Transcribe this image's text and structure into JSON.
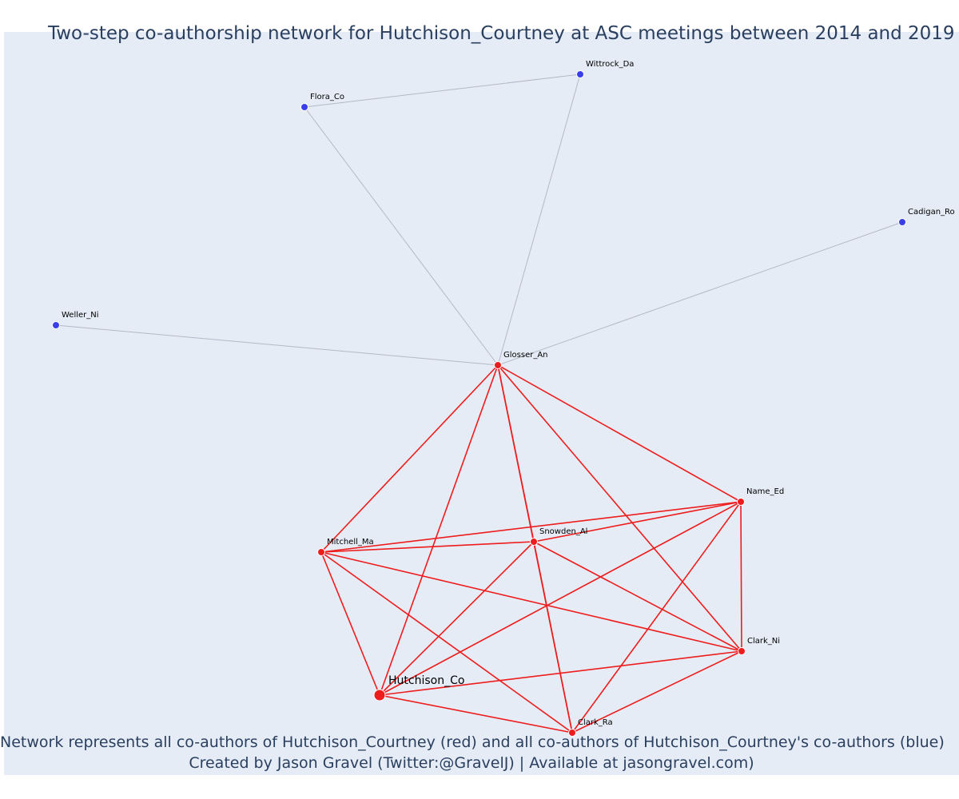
{
  "title": "Two-step co-authorship network for Hutchison_Courtney at ASC meetings between 2014 and 2019",
  "caption_line1": "Network represents all co-authors of Hutchison_Courtney (red) and all co-authors of Hutchison_Courtney's co-authors (blue)",
  "caption_line2": "Created by Jason Gravel (Twitter:@GravelJ) | Available at jasongravel.com)",
  "colors": {
    "background": "#e5ecf6",
    "coauthor": "#ee1c1c",
    "second_step": "#3b3fe8",
    "edge_coauthor": "#ee1c1c",
    "edge_second_step": "#b4b8c8"
  },
  "nodes": [
    {
      "id": "Hutchison_Co",
      "label": "Hutchison_Co",
      "group": "focal"
    },
    {
      "id": "Glosser_An",
      "label": "Glosser_An",
      "group": "coauthor"
    },
    {
      "id": "Name_Ed",
      "label": "Name_Ed",
      "group": "coauthor"
    },
    {
      "id": "Snowden_Al",
      "label": "Snowden_Al",
      "group": "coauthor"
    },
    {
      "id": "Mitchell_Ma",
      "label": "Mitchell_Ma",
      "group": "coauthor"
    },
    {
      "id": "Clark_Ni",
      "label": "Clark_Ni",
      "group": "coauthor"
    },
    {
      "id": "Clark_Ra",
      "label": "Clark_Ra",
      "group": "coauthor"
    },
    {
      "id": "Wittrock_Da",
      "label": "Wittrock_Da",
      "group": "second_step"
    },
    {
      "id": "Flora_Co",
      "label": "Flora_Co",
      "group": "second_step"
    },
    {
      "id": "Cadigan_Ro",
      "label": "Cadigan_Ro",
      "group": "second_step"
    },
    {
      "id": "Weller_Ni",
      "label": "Weller_Ni",
      "group": "second_step"
    }
  ],
  "edges": [
    [
      "Flora_Co",
      "Wittrock_Da"
    ],
    [
      "Flora_Co",
      "Glosser_An"
    ],
    [
      "Wittrock_Da",
      "Glosser_An"
    ],
    [
      "Cadigan_Ro",
      "Glosser_An"
    ],
    [
      "Weller_Ni",
      "Glosser_An"
    ],
    [
      "Glosser_An",
      "Mitchell_Ma"
    ],
    [
      "Glosser_An",
      "Hutchison_Co"
    ],
    [
      "Glosser_An",
      "Snowden_Al"
    ],
    [
      "Glosser_An",
      "Clark_Ra"
    ],
    [
      "Glosser_An",
      "Clark_Ni"
    ],
    [
      "Glosser_An",
      "Name_Ed"
    ],
    [
      "Mitchell_Ma",
      "Name_Ed"
    ],
    [
      "Mitchell_Ma",
      "Snowden_Al"
    ],
    [
      "Mitchell_Ma",
      "Clark_Ni"
    ],
    [
      "Mitchell_Ma",
      "Hutchison_Co"
    ],
    [
      "Mitchell_Ma",
      "Clark_Ra"
    ],
    [
      "Snowden_Al",
      "Name_Ed"
    ],
    [
      "Snowden_Al",
      "Hutchison_Co"
    ],
    [
      "Snowden_Al",
      "Clark_Ra"
    ],
    [
      "Snowden_Al",
      "Clark_Ni"
    ],
    [
      "Name_Ed",
      "Hutchison_Co"
    ],
    [
      "Name_Ed",
      "Clark_Ra"
    ],
    [
      "Name_Ed",
      "Clark_Ni"
    ],
    [
      "Hutchison_Co",
      "Clark_Ni"
    ],
    [
      "Hutchison_Co",
      "Clark_Ra"
    ],
    [
      "Clark_Ni",
      "Clark_Ra"
    ]
  ]
}
